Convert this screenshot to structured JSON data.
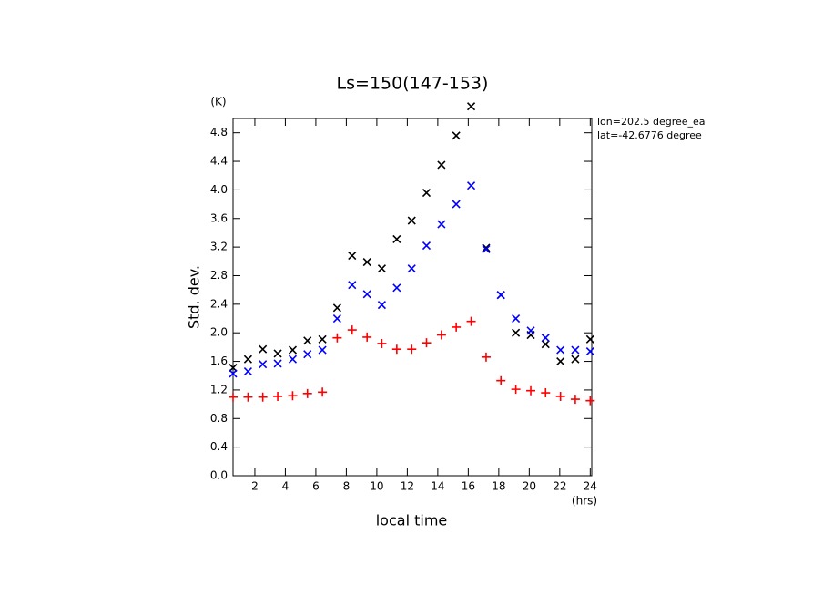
{
  "chart_data": {
    "type": "scatter",
    "title": "Ls=150(147-153)",
    "y_unit": "(K)",
    "x_unit": "(hrs)",
    "y_label": "Std. dev.",
    "x_label": "local time",
    "annotations": [
      "lon=202.5 degree_ea",
      "lat=-42.6776 degree"
    ],
    "x": [
      0.57,
      1.55,
      2.52,
      3.5,
      4.48,
      5.45,
      6.43,
      7.4,
      8.38,
      9.36,
      10.33,
      11.31,
      12.29,
      13.26,
      14.24,
      15.21,
      16.19,
      17.17,
      18.14,
      19.12,
      20.1,
      21.07,
      22.05,
      23.02,
      24.0
    ],
    "series": [
      {
        "color": "#000000",
        "marker": "x",
        "values": [
          1.51,
          1.63,
          1.77,
          1.71,
          1.76,
          1.89,
          1.91,
          2.35,
          3.08,
          2.99,
          2.9,
          3.31,
          3.57,
          3.96,
          4.35,
          4.76,
          5.17,
          3.19,
          2.53,
          2.0,
          1.97,
          1.84,
          1.6,
          1.63,
          1.91
        ]
      },
      {
        "color": "#0000ff",
        "marker": "x",
        "values": [
          1.43,
          1.46,
          1.56,
          1.57,
          1.63,
          1.7,
          1.76,
          2.2,
          2.67,
          2.54,
          2.39,
          2.63,
          2.9,
          3.22,
          3.52,
          3.8,
          4.06,
          3.17,
          2.53,
          2.2,
          2.03,
          1.93,
          1.76,
          1.76,
          1.74
        ]
      },
      {
        "color": "#ff0000",
        "marker": "+",
        "values": [
          1.1,
          1.1,
          1.1,
          1.11,
          1.12,
          1.15,
          1.17,
          1.93,
          2.04,
          1.94,
          1.85,
          1.77,
          1.77,
          1.86,
          1.97,
          2.08,
          2.16,
          1.66,
          1.33,
          1.21,
          1.19,
          1.16,
          1.11,
          1.07,
          1.05
        ]
      }
    ],
    "xlim": [
      0.57,
      24.1
    ],
    "ylim": [
      0,
      5
    ],
    "xticks": [
      2,
      4,
      6,
      8,
      10,
      12,
      14,
      16,
      18,
      20,
      22,
      24
    ],
    "yticks": [
      {
        "value": 0,
        "label": "0.0"
      },
      0.4,
      0.8,
      1.2,
      1.6,
      {
        "value": 2,
        "label": "2.0"
      },
      2.4,
      2.8,
      3.2,
      3.6,
      {
        "value": 4,
        "label": "4.0"
      },
      4.4,
      4.8
    ],
    "grid": false
  }
}
